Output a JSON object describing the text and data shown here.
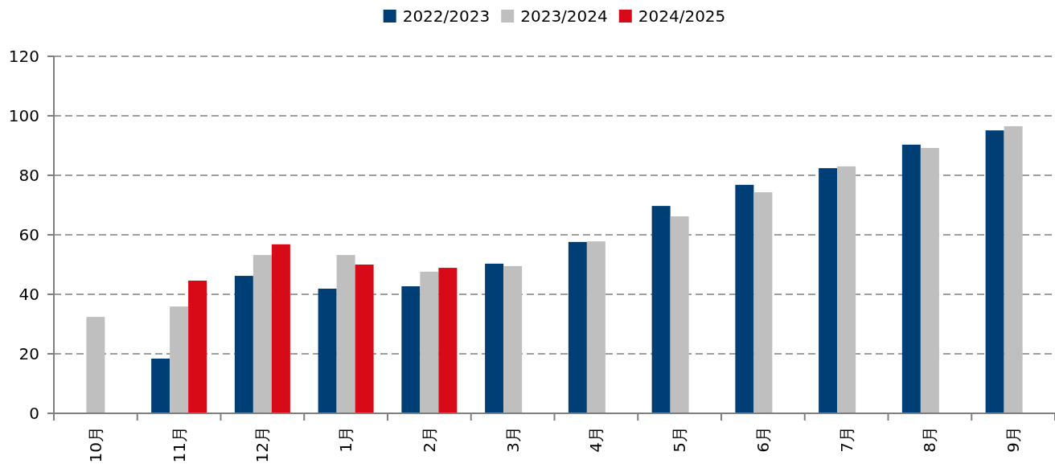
{
  "chart_data": {
    "type": "bar",
    "categories": [
      "10月",
      "11月",
      "12月",
      "1月",
      "2月",
      "3月",
      "4月",
      "5月",
      "6月",
      "7月",
      "8月",
      "9月"
    ],
    "series": [
      {
        "name": "2022/2023",
        "color": "#003f76",
        "values": [
          null,
          18.4,
          46.2,
          41.9,
          42.7,
          50.3,
          57.6,
          69.7,
          76.8,
          82.4,
          90.3,
          95.1
        ]
      },
      {
        "name": "2023/2024",
        "color": "#bfbfbf",
        "values": [
          32.4,
          35.9,
          53.2,
          53.2,
          47.6,
          49.5,
          57.8,
          66.2,
          74.3,
          83.0,
          89.2,
          96.5
        ]
      },
      {
        "name": "2024/2025",
        "color": "#d90a17",
        "values": [
          null,
          44.6,
          56.8,
          50.0,
          48.9,
          null,
          null,
          null,
          null,
          null,
          null,
          null
        ]
      }
    ],
    "ylim": [
      0,
      120
    ],
    "yticks": [
      0,
      20,
      40,
      60,
      80,
      100,
      120
    ],
    "grid": "y",
    "legend": "top"
  }
}
